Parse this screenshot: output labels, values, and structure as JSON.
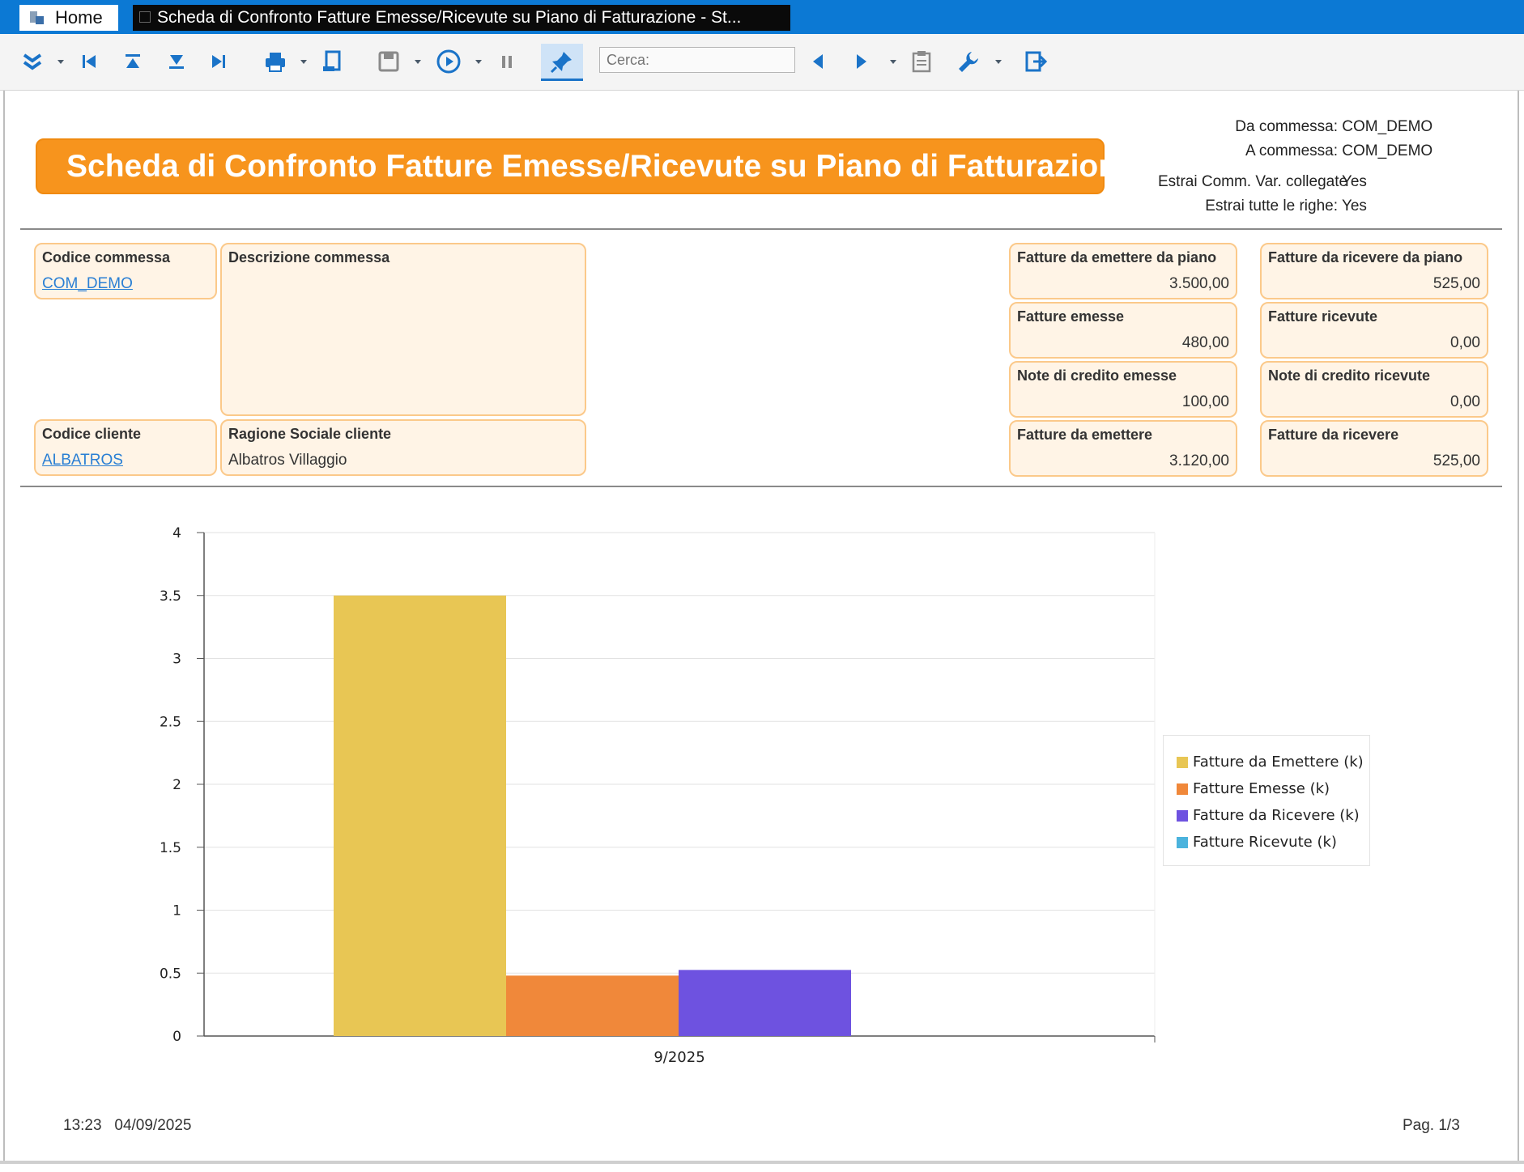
{
  "tabs": {
    "home_label": "Home",
    "report_label": "Scheda di Confronto Fatture Emesse/Ricevute su Piano di Fatturazione - St..."
  },
  "toolbar": {
    "search_placeholder": "Cerca:",
    "icons": [
      "collapse-all-icon",
      "first-page-icon",
      "previous-group-icon",
      "next-group-icon",
      "last-page-icon",
      "print-icon",
      "page-setup-icon",
      "save-icon",
      "play-icon",
      "pause-icon",
      "pin-icon",
      "search-prev-icon",
      "search-next-icon",
      "clipboard-icon",
      "wrench-icon",
      "exit-icon"
    ]
  },
  "report": {
    "title": "Scheda di Confronto Fatture Emesse/Ricevute su Piano di Fatturazione",
    "params": [
      {
        "label": "Da commessa:",
        "value": "COM_DEMO"
      },
      {
        "label": "A commessa:",
        "value": "COM_DEMO"
      },
      {
        "label": "Estrai Comm. Var. collegate",
        "value": "Yes"
      },
      {
        "label": "Estrai tutte le righe:",
        "value": "Yes"
      }
    ],
    "left_boxes": {
      "codice_commessa": {
        "label": "Codice commessa",
        "value": "COM_DEMO"
      },
      "descrizione_commessa": {
        "label": "Descrizione commessa",
        "value": ""
      },
      "codice_cliente": {
        "label": "Codice cliente",
        "value": "ALBATROS"
      },
      "ragione_sociale": {
        "label": "Ragione Sociale cliente",
        "value": "Albatros Villaggio"
      }
    },
    "summary_emesse": [
      {
        "label": "Fatture da emettere da piano",
        "value": "3.500,00"
      },
      {
        "label": "Fatture emesse",
        "value": "480,00"
      },
      {
        "label": "Note di credito emesse",
        "value": "100,00"
      },
      {
        "label": "Fatture da emettere",
        "value": "3.120,00"
      }
    ],
    "summary_ricevute": [
      {
        "label": "Fatture da ricevere da piano",
        "value": "525,00"
      },
      {
        "label": "Fatture ricevute",
        "value": "0,00"
      },
      {
        "label": "Note di credito ricevute",
        "value": "0,00"
      },
      {
        "label": "Fatture da ricevere",
        "value": "525,00"
      }
    ],
    "footer": {
      "time": "13:23",
      "date": "04/09/2025",
      "page": "Pag. 1/3"
    }
  },
  "chart_data": {
    "type": "bar",
    "categories": [
      "9/2025"
    ],
    "series": [
      {
        "name": "Fatture da Emettere (k)",
        "values": [
          3.5
        ],
        "color": "#e8c654"
      },
      {
        "name": "Fatture Emesse (k)",
        "values": [
          0.48
        ],
        "color": "#f0883a"
      },
      {
        "name": "Fatture da Ricevere (k)",
        "values": [
          0.525
        ],
        "color": "#6e52e0"
      },
      {
        "name": "Fatture Ricevute (k)",
        "values": [
          0
        ],
        "color": "#4bb3dd"
      }
    ],
    "ylim": [
      0,
      4
    ],
    "yticks": [
      "0",
      "0.5",
      "1",
      "1.5",
      "2",
      "2.5",
      "3",
      "3.5",
      "4"
    ],
    "grid": true,
    "legend": "right"
  }
}
